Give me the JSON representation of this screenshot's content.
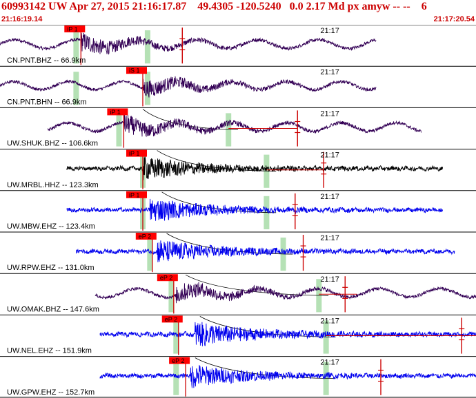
{
  "header": {
    "title": "60993142 UW Apr 27, 2015 21:16:17.87    49.4305 -120.5240   0.0 2.17 Md px amyw -- --    6",
    "start_time": "21:16:19.14",
    "end_time": "21:17:20.54"
  },
  "chart_data": {
    "type": "line",
    "title": "60993142 UW Apr 27, 2015 21:16:17.87    49.4305 -120.5240   0.0 2.17 Md px amyw -- --    6",
    "x_unit": "time",
    "x_range": [
      "21:16:19.14",
      "21:17:20.54"
    ],
    "minute_tick_label": "21:17",
    "grid": false,
    "colors": {
      "pick_flag": "#ff0000",
      "pick_text": "#000000",
      "pick_line": "#cc0000",
      "window": "#a8dca8",
      "coda_curve": "#000000",
      "divider": "#000000",
      "trace_dark": "#330055",
      "trace_black": "#000000",
      "trace_blue": "#0000ee"
    },
    "series": [
      {
        "name": "CN.PNT.BHZ -- 66.9km",
        "pick_label": "iP 1",
        "color": "#330055",
        "style": "mixed",
        "freq": 1.0,
        "onset": 0.17,
        "amp": 0.75,
        "start": 0.0,
        "end": 0.79,
        "pick": 0.17,
        "win": [
          0.16,
          0.31
        ],
        "coda": null,
        "amp_pick": 0.383,
        "tail": null
      },
      {
        "name": "CN.PNT.BHN -- 66.9km",
        "pick_label": "iS 1",
        "color": "#330055",
        "style": "mixed",
        "freq": 0.9,
        "onset": 0.3,
        "amp": 0.7,
        "start": 0.0,
        "end": 0.79,
        "pick": 0.3,
        "win": [
          0.16,
          0.31
        ],
        "coda": null,
        "amp_pick": null,
        "tail": null
      },
      {
        "name": "UW.SHUK.BHZ -- 106.6km",
        "pick_label": "iP 1",
        "color": "#330055",
        "style": "mixed",
        "freq": 0.9,
        "onset": 0.26,
        "amp": 0.75,
        "start": 0.1,
        "end": 0.885,
        "pick": 0.26,
        "win": [
          0.25,
          0.48
        ],
        "coda": 0.3,
        "amp_pick": 0.625,
        "tail": [
          0.48,
          0.625
        ]
      },
      {
        "name": "UW.MRBL.HHZ -- 123.3km",
        "pick_label": "iP 1",
        "color": "#000000",
        "style": "hf",
        "freq": 0.6,
        "onset": 0.3,
        "amp": 0.75,
        "start": 0.14,
        "end": 0.93,
        "pick": 0.3,
        "win": [
          0.3,
          0.56
        ],
        "coda": 0.33,
        "amp_pick": 0.68,
        "tail": [
          0.56,
          0.68
        ]
      },
      {
        "name": "UW.MBW.EHZ -- 123.4km",
        "pick_label": "iP 1",
        "color": "#0000ee",
        "style": "hf",
        "freq": 0.4,
        "onset": 0.315,
        "amp": 0.75,
        "start": 0.14,
        "end": 0.93,
        "pick": 0.3,
        "win": [
          0.3,
          0.56
        ],
        "coda": 0.34,
        "amp_pick": 0.62,
        "tail": null
      },
      {
        "name": "UW.RPW.EHZ -- 131.0km",
        "pick_label": "eP 2",
        "color": "#0000ee",
        "style": "hf",
        "freq": 0.4,
        "onset": 0.33,
        "amp": 0.75,
        "start": 0.16,
        "end": 0.955,
        "pick": 0.32,
        "win": [
          0.315,
          0.595
        ],
        "coda": 0.35,
        "amp_pick": 0.637,
        "tail": null
      },
      {
        "name": "UW.OMAK.BHZ -- 147.6km",
        "pick_label": "eP 2",
        "color": "#330055",
        "style": "mixed",
        "freq": 1.0,
        "onset": 0.37,
        "amp": 0.75,
        "start": 0.2,
        "end": 1.0,
        "pick": 0.365,
        "win": [
          0.36,
          0.67
        ],
        "coda": 0.39,
        "amp_pick": 0.725,
        "tail": [
          0.67,
          0.75
        ]
      },
      {
        "name": "UW.NEL.EHZ -- 151.9km",
        "pick_label": "eP 2",
        "color": "#0000ee",
        "style": "hf",
        "freq": 0.4,
        "onset": 0.41,
        "amp": 0.8,
        "start": 0.21,
        "end": 1.0,
        "pick": 0.375,
        "win": [
          0.37,
          0.685
        ],
        "coda": 0.42,
        "amp_pick": 0.97,
        "tail": [
          0.685,
          1.0
        ]
      },
      {
        "name": "UW.GPW.EHZ -- 152.7km",
        "pick_label": "eP 2",
        "color": "#0000ee",
        "style": "hf",
        "freq": 0.4,
        "onset": 0.4,
        "amp": 0.75,
        "start": 0.21,
        "end": 1.0,
        "pick": 0.39,
        "win": [
          0.37,
          0.685
        ],
        "coda": 0.41,
        "amp_pick": 0.8,
        "tail": null
      }
    ]
  }
}
